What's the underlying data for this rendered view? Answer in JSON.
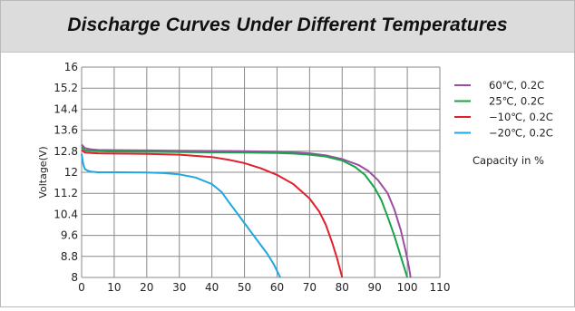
{
  "header": {
    "title": "Discharge Curves Under Different Temperatures"
  },
  "chart_data": {
    "type": "line",
    "title": "Discharge Curves Under Different Temperatures",
    "xlabel": "",
    "ylabel": "Voltage(V)",
    "xlim": [
      0,
      110
    ],
    "ylim": [
      8,
      16
    ],
    "x_ticks": [
      0,
      10,
      20,
      30,
      40,
      50,
      60,
      70,
      80,
      90,
      100,
      110
    ],
    "y_ticks": [
      8,
      8.8,
      9.6,
      10.4,
      11.2,
      12,
      12.8,
      13.6,
      14.4,
      15.2,
      16
    ],
    "x_tick_labels": [
      "0",
      "10",
      "20",
      "30",
      "40",
      "50",
      "60",
      "70",
      "80",
      "90",
      "100",
      "110"
    ],
    "y_tick_labels": [
      "8",
      "8.8",
      "9.6",
      "10.4",
      "11.2",
      "12",
      "12.8",
      "13.6",
      "14.4",
      "15.2",
      "16"
    ],
    "grid": true,
    "legend_position": "right",
    "annotation": "Capacity in %",
    "series": [
      {
        "name": "60℃, 0.2C",
        "color": "#9b4ea0",
        "points": [
          [
            0,
            13.05
          ],
          [
            1,
            12.92
          ],
          [
            3,
            12.87
          ],
          [
            5,
            12.85
          ],
          [
            10,
            12.84
          ],
          [
            20,
            12.83
          ],
          [
            30,
            12.82
          ],
          [
            40,
            12.81
          ],
          [
            50,
            12.8
          ],
          [
            60,
            12.78
          ],
          [
            65,
            12.76
          ],
          [
            70,
            12.72
          ],
          [
            75,
            12.64
          ],
          [
            80,
            12.5
          ],
          [
            85,
            12.28
          ],
          [
            88,
            12.05
          ],
          [
            91,
            11.7
          ],
          [
            94,
            11.2
          ],
          [
            96,
            10.6
          ],
          [
            98,
            9.8
          ],
          [
            99.5,
            9.0
          ],
          [
            100.5,
            8.4
          ],
          [
            101,
            8.0
          ]
        ]
      },
      {
        "name": "25℃, 0.2C",
        "color": "#1aa34a",
        "points": [
          [
            0,
            12.95
          ],
          [
            1,
            12.84
          ],
          [
            3,
            12.81
          ],
          [
            5,
            12.8
          ],
          [
            10,
            12.79
          ],
          [
            20,
            12.78
          ],
          [
            30,
            12.77
          ],
          [
            40,
            12.76
          ],
          [
            50,
            12.75
          ],
          [
            60,
            12.73
          ],
          [
            65,
            12.71
          ],
          [
            70,
            12.67
          ],
          [
            75,
            12.6
          ],
          [
            80,
            12.45
          ],
          [
            84,
            12.2
          ],
          [
            87,
            11.9
          ],
          [
            90,
            11.4
          ],
          [
            92,
            10.95
          ],
          [
            94,
            10.3
          ],
          [
            96,
            9.6
          ],
          [
            98,
            8.8
          ],
          [
            99,
            8.4
          ],
          [
            100,
            8.0
          ]
        ]
      },
      {
        "name": "−10℃, 0.2C",
        "color": "#e0202a",
        "points": [
          [
            0,
            12.85
          ],
          [
            1,
            12.75
          ],
          [
            3,
            12.73
          ],
          [
            5,
            12.72
          ],
          [
            10,
            12.71
          ],
          [
            20,
            12.7
          ],
          [
            30,
            12.67
          ],
          [
            40,
            12.58
          ],
          [
            45,
            12.48
          ],
          [
            50,
            12.35
          ],
          [
            55,
            12.15
          ],
          [
            60,
            11.9
          ],
          [
            65,
            11.55
          ],
          [
            70,
            11.0
          ],
          [
            73,
            10.5
          ],
          [
            75,
            10.0
          ],
          [
            77,
            9.3
          ],
          [
            78.5,
            8.7
          ],
          [
            80,
            8.0
          ]
        ]
      },
      {
        "name": "−20℃, 0.2C",
        "color": "#1ea7e0",
        "points": [
          [
            0,
            12.7
          ],
          [
            0.5,
            12.3
          ],
          [
            1,
            12.12
          ],
          [
            2,
            12.05
          ],
          [
            3,
            12.02
          ],
          [
            5,
            12.0
          ],
          [
            10,
            12.0
          ],
          [
            20,
            11.99
          ],
          [
            25,
            11.97
          ],
          [
            30,
            11.92
          ],
          [
            35,
            11.8
          ],
          [
            40,
            11.55
          ],
          [
            43,
            11.25
          ],
          [
            45,
            10.9
          ],
          [
            48,
            10.4
          ],
          [
            51,
            9.9
          ],
          [
            54,
            9.4
          ],
          [
            57,
            8.9
          ],
          [
            59,
            8.5
          ],
          [
            61,
            8.0
          ]
        ]
      }
    ]
  }
}
